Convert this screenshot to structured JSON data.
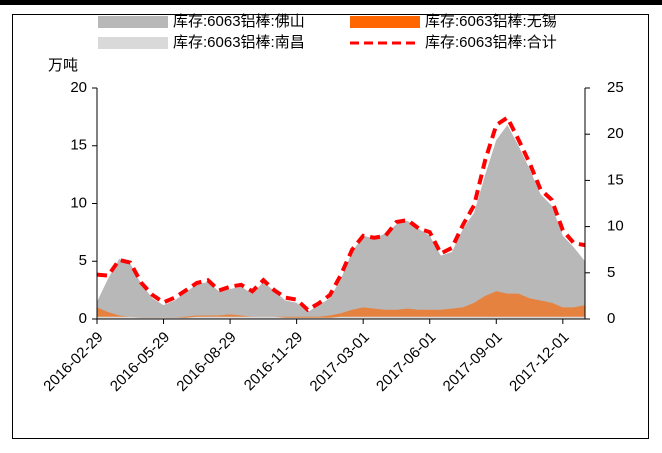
{
  "chart_data": {
    "type": "area_line",
    "y_label": "万吨",
    "categories": [
      "2016-02-29",
      null,
      null,
      null,
      null,
      null,
      "2016-05-29",
      null,
      null,
      null,
      null,
      null,
      "2016-08-29",
      null,
      null,
      null,
      null,
      null,
      "2016-11-29",
      null,
      null,
      null,
      null,
      null,
      "2017-03-01",
      null,
      null,
      null,
      null,
      null,
      "2017-06-01",
      null,
      null,
      null,
      null,
      null,
      "2017-09-01",
      null,
      null,
      null,
      null,
      null,
      "2017-12-01",
      null,
      null
    ],
    "series": [
      {
        "name": "库存:6063铝棒:佛山",
        "color": "#b8b8b8",
        "kind": "area",
        "values": [
          1.5,
          3.5,
          5.2,
          4.8,
          3.0,
          1.8,
          1.2,
          1.6,
          2.3,
          3.0,
          3.2,
          2.4,
          2.6,
          2.8,
          2.2,
          3.2,
          2.4,
          1.6,
          1.4,
          0.6,
          1.2,
          1.8,
          3.5,
          5.8,
          7.2,
          7.0,
          7.4,
          8.2,
          8.5,
          7.8,
          7.2,
          5.5,
          5.8,
          7.8,
          9.2,
          12.5,
          15.5,
          16.8,
          15.0,
          13.0,
          10.8,
          9.8,
          7.2,
          6.2,
          5.0
        ]
      },
      {
        "name": "库存:6063铝棒:无锡",
        "color": "#ff6600",
        "kind": "area",
        "values": [
          1.0,
          0.6,
          0.3,
          0.2,
          0.1,
          0.1,
          0.1,
          0.1,
          0.2,
          0.3,
          0.3,
          0.3,
          0.4,
          0.3,
          0.2,
          0.2,
          0.2,
          0.2,
          0.2,
          0.2,
          0.2,
          0.3,
          0.5,
          0.8,
          1.0,
          0.9,
          0.8,
          0.8,
          0.9,
          0.8,
          0.8,
          0.8,
          0.9,
          1.0,
          1.4,
          2.0,
          2.4,
          2.2,
          2.2,
          1.8,
          1.6,
          1.4,
          1.0,
          1.0,
          1.2
        ]
      },
      {
        "name": "库存:6063铝棒:南昌",
        "color": "#d9d9d9",
        "kind": "area",
        "values": [
          0.2,
          0.2,
          0.2,
          0.2,
          0.1,
          0.1,
          0.1,
          0.1,
          0.1,
          0.2,
          0.2,
          0.2,
          0.2,
          0.2,
          0.2,
          0.2,
          0.2,
          0.1,
          0.1,
          0.1,
          0.1,
          0.1,
          0.2,
          0.2,
          0.2,
          0.2,
          0.2,
          0.2,
          0.2,
          0.2,
          0.2,
          0.2,
          0.2,
          0.2,
          0.2,
          0.2,
          0.2,
          0.2,
          0.2,
          0.2,
          0.2,
          0.2,
          0.2,
          0.2,
          0.2
        ]
      },
      {
        "name": "库存:6063铝棒:合计",
        "color": "#ff0000",
        "kind": "line",
        "axis": "y2",
        "values": [
          4.8,
          4.7,
          6.4,
          6.1,
          3.9,
          2.6,
          1.8,
          2.3,
          3.1,
          3.9,
          4.2,
          3.1,
          3.5,
          3.7,
          3.0,
          4.2,
          3.1,
          2.3,
          2.1,
          1.0,
          1.7,
          2.6,
          4.8,
          7.5,
          9.0,
          8.8,
          9.0,
          10.5,
          10.7,
          9.8,
          9.4,
          7.1,
          7.7,
          10.2,
          12.3,
          17.2,
          21.0,
          21.8,
          19.4,
          16.9,
          14.0,
          12.9,
          9.6,
          8.2,
          8.0
        ]
      }
    ],
    "ylim": [
      0,
      20
    ],
    "yticks": [
      0,
      5,
      10,
      15,
      20
    ],
    "y2lim": [
      0,
      25
    ],
    "y2ticks": [
      0,
      5,
      10,
      15,
      20,
      25
    ]
  }
}
